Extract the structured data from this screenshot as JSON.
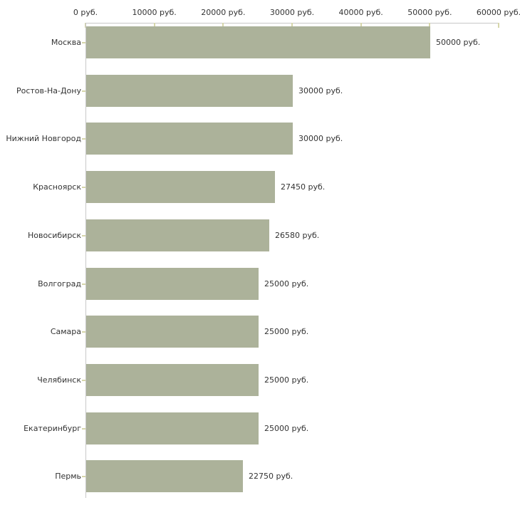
{
  "chart_data": {
    "type": "bar",
    "orientation": "horizontal",
    "title": "",
    "xlabel": "",
    "ylabel": "",
    "unit": "руб.",
    "grid": false,
    "legend": false,
    "categories": [
      "Москва",
      "Ростов-На-Дону",
      "Нижний Новгород",
      "Красноярск",
      "Новосибирск",
      "Волгоград",
      "Самара",
      "Челябинск",
      "Екатеринбург",
      "Пермь"
    ],
    "values": [
      50000,
      30000,
      30000,
      27450,
      26580,
      25000,
      25000,
      25000,
      25000,
      22750
    ],
    "value_labels": [
      "50000 руб.",
      "30000 руб.",
      "30000 руб.",
      "27450 руб.",
      "26580 руб.",
      "25000 руб.",
      "25000 руб.",
      "25000 руб.",
      "25000 руб.",
      "22750 руб."
    ],
    "x_axis": {
      "min": 0,
      "max": 60000,
      "ticks": [
        0,
        10000,
        20000,
        30000,
        40000,
        50000,
        60000
      ],
      "tick_labels": [
        "0 руб.",
        "10000 руб.",
        "20000 руб.",
        "30000 руб.",
        "40000 руб.",
        "50000 руб.",
        "60000 руб."
      ]
    },
    "colors": {
      "bar": "#acb29a",
      "axis_line": "#c8c8c8",
      "tick_mark": "#d6d6aa",
      "text": "#333333"
    }
  }
}
